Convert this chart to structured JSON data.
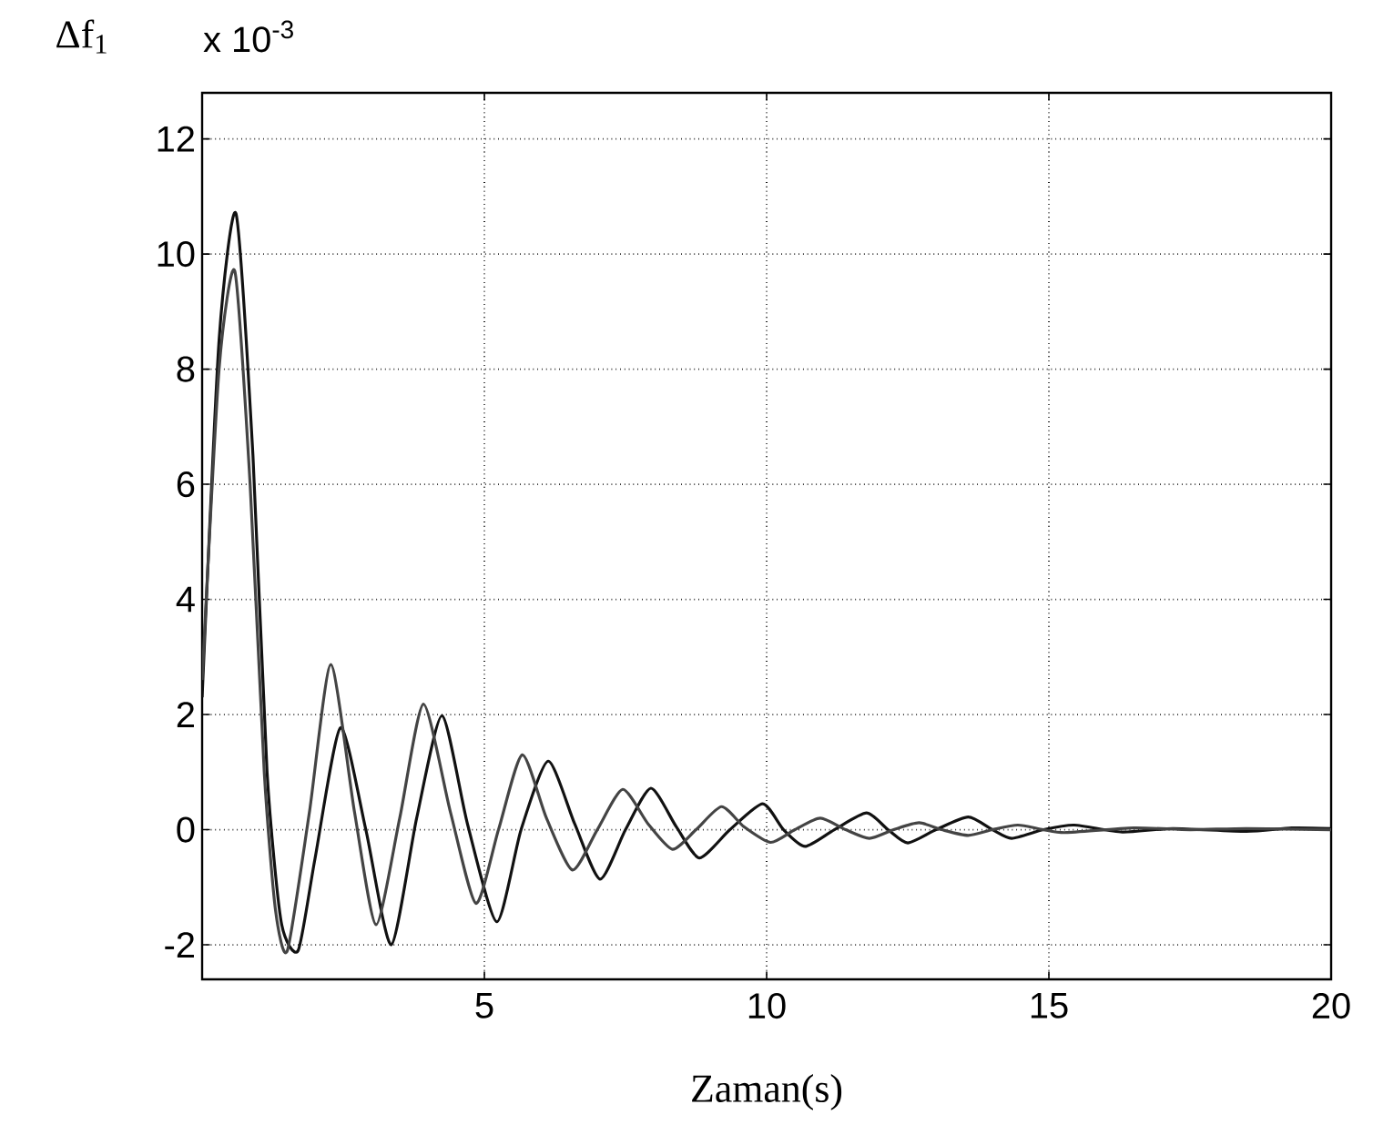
{
  "chart_data": {
    "type": "line",
    "ylabel": "Δf$_{1}$",
    "xlabel": "Zaman(s)",
    "annotations": [
      "x 10$^{-3}$"
    ],
    "xlim": [
      0,
      20
    ],
    "ylim": [
      -2.6,
      12.8
    ],
    "xticks": [
      {
        "value": 0,
        "label": null
      },
      5,
      10,
      15,
      20
    ],
    "yticks": [
      -2,
      0,
      2,
      4,
      6,
      8,
      10,
      12
    ],
    "grid": true,
    "series": [
      {
        "color": "#111111",
        "x": [
          0,
          0.3,
          0.6,
          0.9,
          1.15,
          1.4,
          1.7,
          2.0,
          2.45,
          2.9,
          3.35,
          3.8,
          4.25,
          4.7,
          5.22,
          5.65,
          6.13,
          6.6,
          7.05,
          7.5,
          7.95,
          8.4,
          8.81,
          9.35,
          9.93,
          10.3,
          10.68,
          11.2,
          11.77,
          12.15,
          12.5,
          13.0,
          13.57,
          14.0,
          14.34,
          14.9,
          15.45,
          16.3,
          17.2,
          18.5,
          19.3,
          20
        ],
        "values": [
          2.3,
          8.5,
          10.7,
          6.5,
          1.0,
          -1.6,
          -2.1,
          -0.5,
          1.77,
          0,
          -2.0,
          0.2,
          1.98,
          0.1,
          -1.6,
          0,
          1.19,
          0.1,
          -0.86,
          0,
          0.72,
          0.05,
          -0.49,
          0,
          0.45,
          0,
          -0.29,
          0,
          0.29,
          0,
          -0.23,
          0,
          0.22,
          0,
          -0.15,
          0,
          0.08,
          -0.04,
          0.02,
          -0.03,
          0.03,
          0.02
        ]
      },
      {
        "color": "#444444",
        "x": [
          0,
          0.3,
          0.58,
          0.85,
          1.1,
          1.3,
          1.51,
          1.9,
          2.28,
          2.7,
          3.08,
          3.5,
          3.92,
          4.4,
          4.85,
          5.25,
          5.67,
          6.1,
          6.56,
          7.0,
          7.45,
          7.9,
          8.33,
          8.75,
          9.2,
          9.6,
          10.07,
          10.5,
          10.95,
          11.4,
          11.82,
          12.25,
          12.7,
          13.1,
          13.57,
          14.0,
          14.45,
          14.9,
          15.3,
          16.5,
          17.5,
          18.5,
          20
        ],
        "values": [
          2.6,
          8.0,
          9.7,
          6.0,
          1.0,
          -1.4,
          -2.1,
          0.3,
          2.87,
          0.3,
          -1.65,
          0.2,
          2.18,
          0.3,
          -1.28,
          0,
          1.3,
          0.2,
          -0.7,
          0,
          0.7,
          0.1,
          -0.34,
          0,
          0.4,
          0.05,
          -0.22,
          0,
          0.2,
          0,
          -0.15,
          0,
          0.12,
          0,
          -0.1,
          0,
          0.08,
          0,
          -0.05,
          0.03,
          0.0,
          0.02,
          0.0
        ]
      }
    ]
  }
}
